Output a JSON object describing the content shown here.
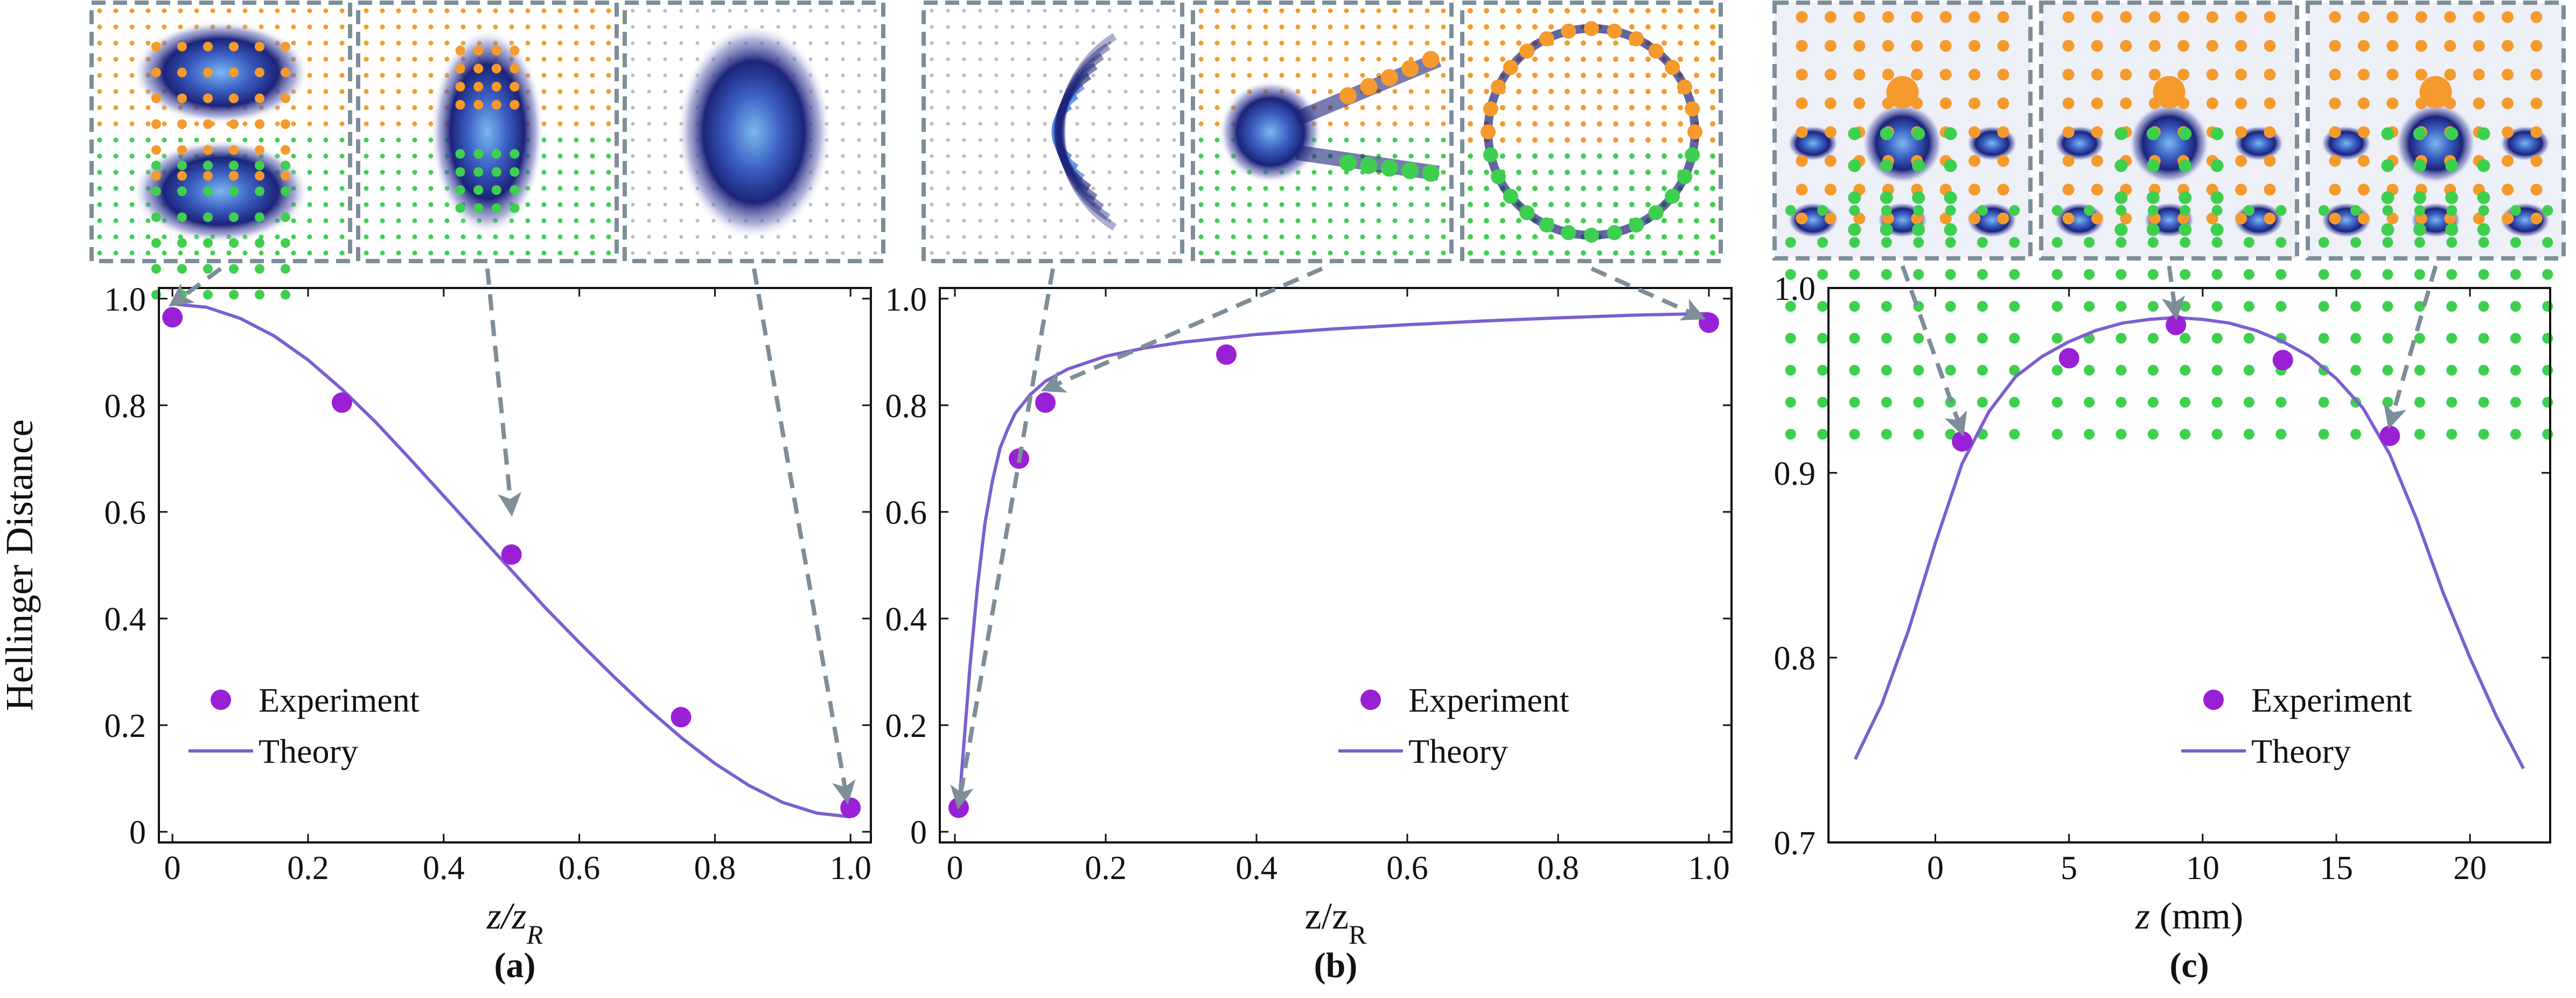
{
  "figure": {
    "colors": {
      "theory": "#7b5fd0",
      "experiment": "#9a20d6",
      "arrow": "#7d8e99",
      "dot_orange": "#f59a2c",
      "dot_green": "#3fcf4f",
      "beam": "#1f2a8a",
      "beam_core": "#5aa0e6"
    },
    "legend": {
      "experiment": "Experiment",
      "theory": "Theory"
    }
  },
  "chart_data": [
    {
      "type": "scatter",
      "panel_label": "(a)",
      "xlabel": "z/z",
      "xlabel_sub": "R",
      "ylabel": "Hellinger Distance",
      "xlim": [
        -0.02,
        1.03
      ],
      "ylim": [
        -0.02,
        1.02
      ],
      "xticks": [
        0,
        0.2,
        0.4,
        0.6,
        0.8,
        1.0
      ],
      "xtick_labels": [
        "0",
        "0.2",
        "0.4",
        "0.6",
        "0.8",
        "1.0"
      ],
      "yticks": [
        0,
        0.2,
        0.4,
        0.6,
        0.8,
        1.0
      ],
      "ytick_labels": [
        "0",
        "0.2",
        "0.4",
        "0.6",
        "0.8",
        "1.0"
      ],
      "series": [
        {
          "name": "Experiment",
          "kind": "points",
          "x": [
            0.0,
            0.25,
            0.5,
            0.75,
            1.0
          ],
          "y": [
            0.965,
            0.805,
            0.52,
            0.215,
            0.045
          ]
        },
        {
          "name": "Theory",
          "kind": "line",
          "x": [
            0.0,
            0.05,
            0.1,
            0.15,
            0.2,
            0.25,
            0.3,
            0.35,
            0.4,
            0.45,
            0.5,
            0.55,
            0.6,
            0.65,
            0.7,
            0.75,
            0.8,
            0.85,
            0.9,
            0.95,
            1.0
          ],
          "y": [
            0.99,
            0.984,
            0.963,
            0.93,
            0.885,
            0.83,
            0.768,
            0.7,
            0.63,
            0.56,
            0.49,
            0.42,
            0.355,
            0.292,
            0.232,
            0.177,
            0.128,
            0.087,
            0.055,
            0.035,
            0.028
          ]
        }
      ],
      "thumbnails": [
        {
          "pattern": "two-lobes",
          "arrow_to": [
            0.0,
            0.99
          ]
        },
        {
          "pattern": "merged",
          "arrow_to": [
            0.5,
            0.6
          ]
        },
        {
          "pattern": "ellipse",
          "arrow_to": [
            0.995,
            0.06
          ]
        }
      ]
    },
    {
      "type": "scatter",
      "panel_label": "(b)",
      "xlabel": "z/z",
      "xlabel_sub": "R",
      "xlim": [
        -0.02,
        1.03
      ],
      "ylim": [
        -0.02,
        1.02
      ],
      "xticks": [
        0,
        0.2,
        0.4,
        0.6,
        0.8,
        1.0
      ],
      "xtick_labels": [
        "0",
        "0.2",
        "0.4",
        "0.6",
        "0.8",
        "1.0"
      ],
      "yticks": [
        0,
        0.2,
        0.4,
        0.6,
        0.8,
        1.0
      ],
      "ytick_labels": [
        "0",
        "0.2",
        "0.4",
        "0.6",
        "0.8",
        "1.0"
      ],
      "series": [
        {
          "name": "Experiment",
          "kind": "points",
          "x": [
            0.005,
            0.085,
            0.12,
            0.36,
            1.0
          ],
          "y": [
            0.045,
            0.7,
            0.805,
            0.895,
            0.955
          ]
        },
        {
          "name": "Theory",
          "kind": "line",
          "x": [
            0.005,
            0.01,
            0.02,
            0.03,
            0.04,
            0.05,
            0.06,
            0.07,
            0.08,
            0.1,
            0.12,
            0.15,
            0.2,
            0.25,
            0.3,
            0.4,
            0.5,
            0.6,
            0.7,
            0.8,
            0.9,
            1.0
          ],
          "y": [
            0.04,
            0.13,
            0.31,
            0.46,
            0.58,
            0.66,
            0.72,
            0.755,
            0.785,
            0.82,
            0.845,
            0.868,
            0.892,
            0.907,
            0.918,
            0.933,
            0.943,
            0.951,
            0.958,
            0.964,
            0.969,
            0.972
          ]
        }
      ],
      "thumbnails": [
        {
          "pattern": "arcs",
          "arrow_to": [
            0.005,
            0.05
          ]
        },
        {
          "pattern": "fork",
          "arrow_to": [
            0.12,
            0.83
          ]
        },
        {
          "pattern": "ring",
          "arrow_to": [
            0.99,
            0.965
          ]
        }
      ]
    },
    {
      "type": "scatter",
      "panel_label": "(c)",
      "xlabel": "z",
      "xlabel_unit": " (mm)",
      "xlim": [
        -4,
        23
      ],
      "ylim": [
        0.7,
        1.0
      ],
      "xticks": [
        0,
        5,
        10,
        15,
        20
      ],
      "xtick_labels": [
        "0",
        "5",
        "10",
        "15",
        "20"
      ],
      "yticks": [
        0.7,
        0.8,
        0.9,
        1.0
      ],
      "ytick_labels": [
        "0.7",
        "0.8",
        "0.9",
        "1.0"
      ],
      "series": [
        {
          "name": "Experiment",
          "kind": "points",
          "x": [
            1,
            5,
            9,
            13,
            17
          ],
          "y": [
            0.917,
            0.962,
            0.98,
            0.961,
            0.92
          ]
        },
        {
          "name": "Theory",
          "kind": "line",
          "x": [
            -3,
            -2,
            -1,
            0,
            1,
            2,
            3,
            4,
            5,
            6,
            7,
            8,
            9,
            10,
            11,
            12,
            13,
            14,
            15,
            16,
            17,
            18,
            19,
            20,
            21,
            22
          ],
          "y": [
            0.745,
            0.775,
            0.815,
            0.862,
            0.905,
            0.933,
            0.952,
            0.963,
            0.971,
            0.977,
            0.981,
            0.983,
            0.984,
            0.983,
            0.981,
            0.977,
            0.971,
            0.963,
            0.951,
            0.935,
            0.91,
            0.875,
            0.835,
            0.8,
            0.768,
            0.74
          ]
        }
      ],
      "thumbnails": [
        {
          "pattern": "lattice",
          "arrow_to": [
            1,
            0.922
          ]
        },
        {
          "pattern": "lattice",
          "arrow_to": [
            9,
            0.985
          ]
        },
        {
          "pattern": "lattice",
          "arrow_to": [
            17,
            0.926
          ]
        }
      ]
    }
  ]
}
